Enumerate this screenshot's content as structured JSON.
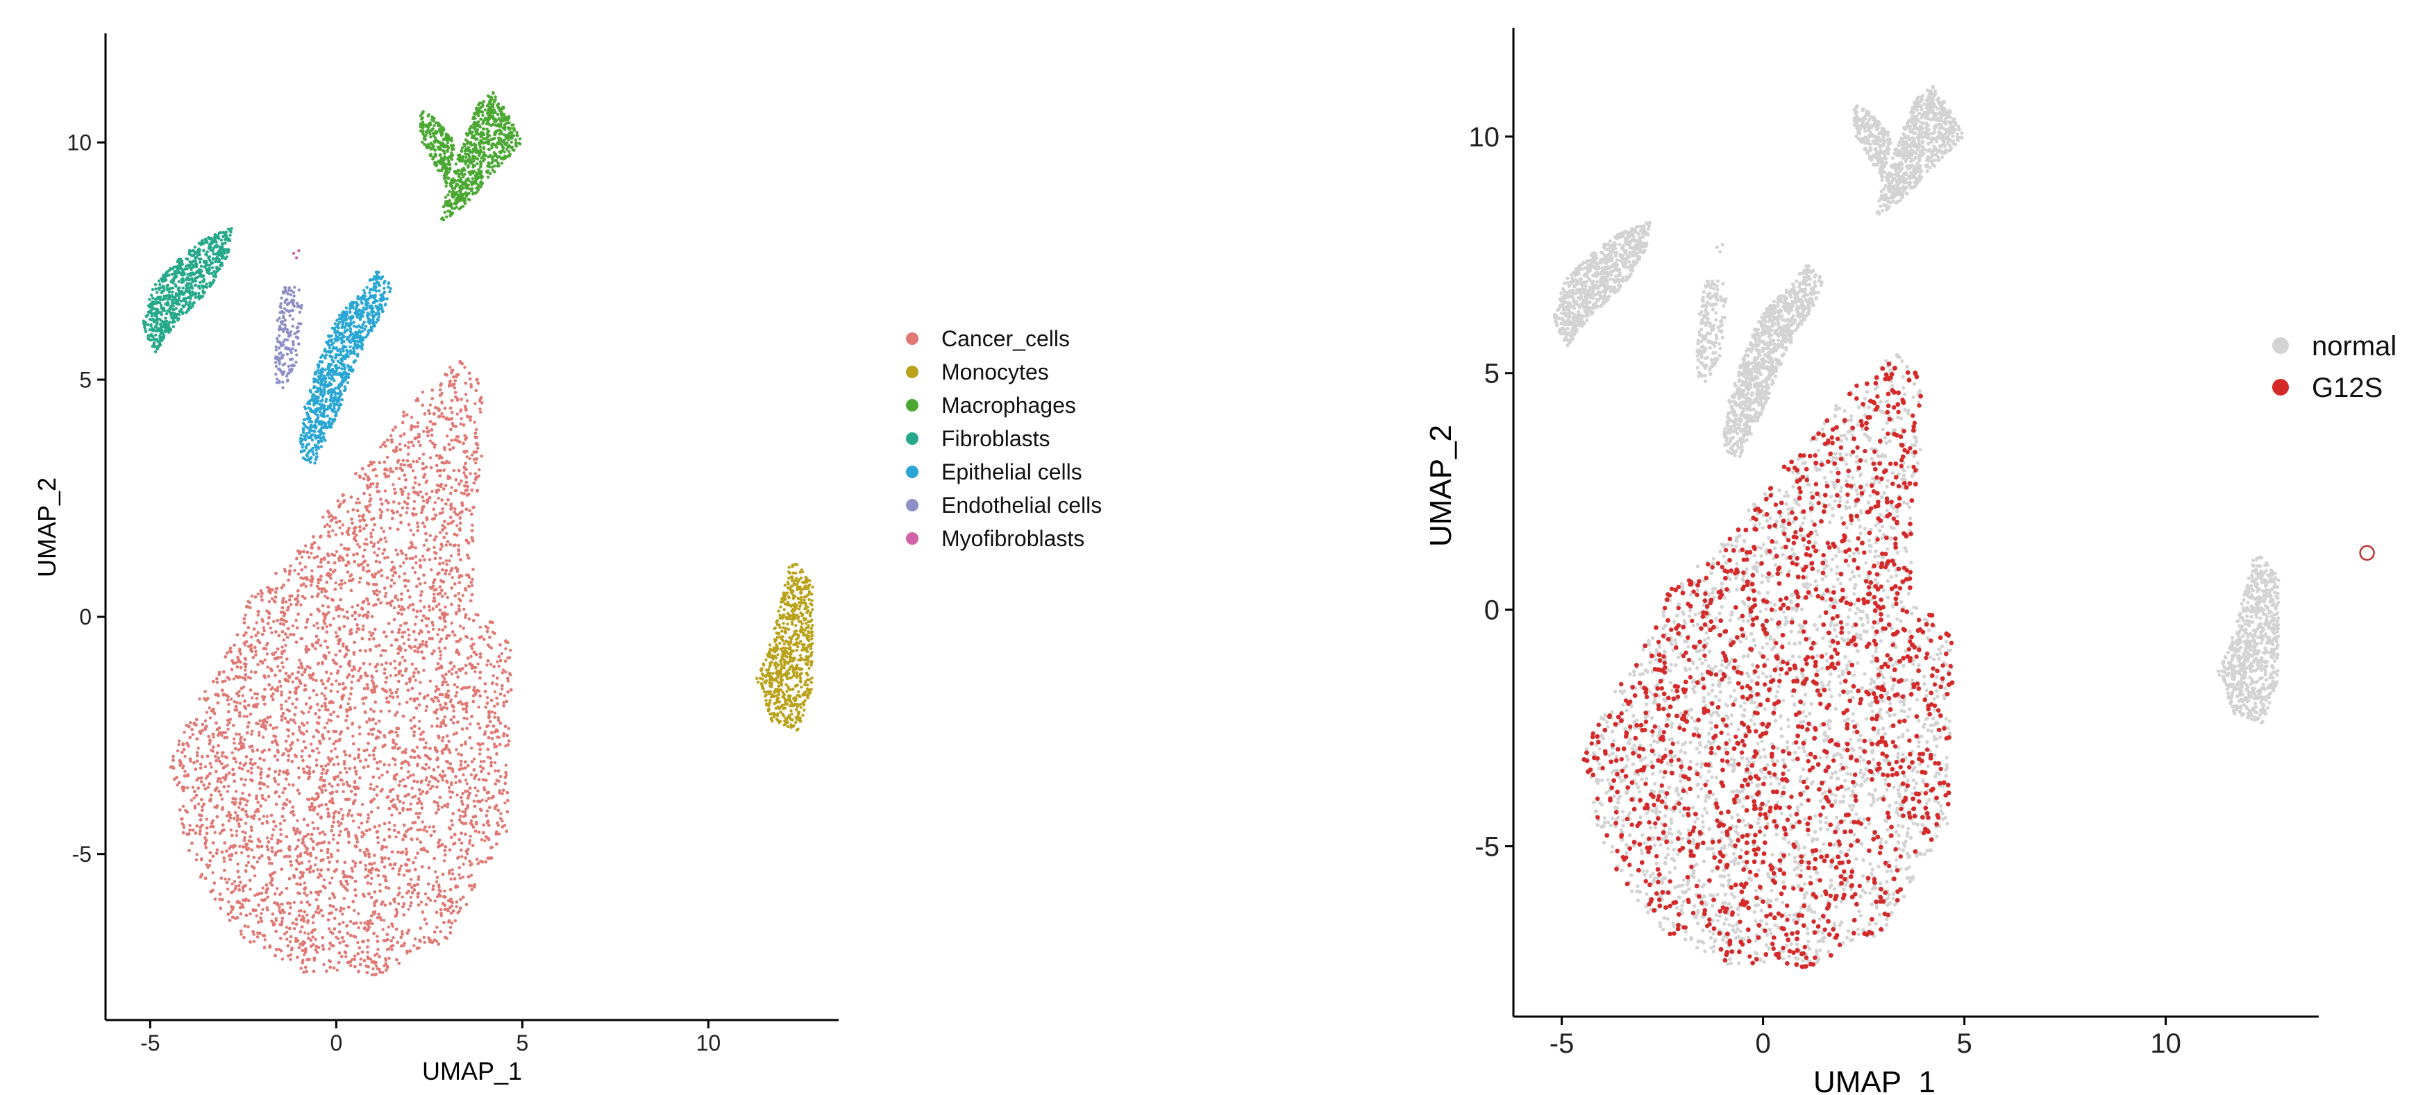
{
  "chart_data": [
    {
      "type": "scatter",
      "xlabel": "UMAP_1",
      "ylabel": "UMAP_2",
      "xlim": [
        -6.2,
        13.5
      ],
      "ylim": [
        -8.5,
        12.3
      ],
      "xticks": [
        -5,
        0,
        5,
        10
      ],
      "yticks": [
        -5,
        0,
        5,
        10
      ],
      "grid": false,
      "legend": "right",
      "series": [
        {
          "name": "Cancer_cells",
          "color": "#e07873"
        },
        {
          "name": "Monocytes",
          "color": "#b9a21a"
        },
        {
          "name": "Macrophages",
          "color": "#4aa832"
        },
        {
          "name": "Fibroblasts",
          "color": "#26a98a"
        },
        {
          "name": "Epithelial cells",
          "color": "#29a6d3"
        },
        {
          "name": "Endothelial cells",
          "color": "#8f8fc7"
        },
        {
          "name": "Myofibroblasts",
          "color": "#cf62a6"
        }
      ],
      "clusters": [
        {
          "series": "Cancer_cells",
          "polygon": [
            [
              -4.5,
              -3
            ],
            [
              -4,
              -5.2
            ],
            [
              -2.5,
              -6.8
            ],
            [
              -1,
              -7.5
            ],
            [
              1,
              -7.6
            ],
            [
              3,
              -6.8
            ],
            [
              4.6,
              -4.5
            ],
            [
              4.7,
              -1.5
            ],
            [
              4.7,
              -0.5
            ],
            [
              3.7,
              0.3
            ],
            [
              3.7,
              2
            ],
            [
              4,
              4
            ],
            [
              3.8,
              5.3
            ],
            [
              3.2,
              5.4
            ],
            [
              2,
              4.5
            ],
            [
              0.3,
              2.8
            ],
            [
              -1.2,
              1.2
            ],
            [
              -2.4,
              0.4
            ],
            [
              -2.6,
              -0.3
            ],
            [
              -3.6,
              -1.6
            ]
          ],
          "density": 1.0
        },
        {
          "series": "Monocytes",
          "polygon": [
            [
              11.3,
              -1.3
            ],
            [
              11.7,
              -2.2
            ],
            [
              12.4,
              -2.4
            ],
            [
              12.8,
              -1.5
            ],
            [
              12.8,
              0.8
            ],
            [
              12.2,
              1.3
            ],
            [
              11.9,
              0.2
            ],
            [
              11.7,
              -0.5
            ]
          ],
          "density": 0.9
        },
        {
          "series": "Macrophages",
          "polygon": [
            [
              2.8,
              8.3
            ],
            [
              3.5,
              8.7
            ],
            [
              4.3,
              9.4
            ],
            [
              5,
              10
            ],
            [
              4.7,
              10.5
            ],
            [
              4.2,
              11.1
            ],
            [
              3.8,
              10.8
            ],
            [
              3.3,
              9.8
            ],
            [
              3,
              9
            ],
            [
              2.3,
              10
            ],
            [
              2.2,
              10.7
            ],
            [
              2.7,
              10.5
            ],
            [
              3.2,
              10
            ]
          ],
          "density": 0.8
        },
        {
          "series": "Fibroblasts",
          "polygon": [
            [
              -5.2,
              6.2
            ],
            [
              -4.9,
              5.5
            ],
            [
              -4.3,
              6.2
            ],
            [
              -3.5,
              6.8
            ],
            [
              -2.9,
              7.6
            ],
            [
              -2.8,
              8.2
            ],
            [
              -3.5,
              8
            ],
            [
              -4.3,
              7.5
            ],
            [
              -4.9,
              7
            ]
          ],
          "density": 0.8
        },
        {
          "series": "Epithelial cells",
          "polygon": [
            [
              -1,
              3.4
            ],
            [
              -0.6,
              3.2
            ],
            [
              0,
              4.2
            ],
            [
              0.6,
              5.5
            ],
            [
              1.3,
              6.5
            ],
            [
              1.5,
              7
            ],
            [
              1.1,
              7.3
            ],
            [
              0.6,
              6.8
            ],
            [
              -0.1,
              6.2
            ],
            [
              -0.5,
              5.3
            ],
            [
              -0.9,
              4.3
            ]
          ],
          "density": 0.6
        },
        {
          "series": "Endothelial cells",
          "polygon": [
            [
              -1.7,
              5
            ],
            [
              -1.4,
              4.8
            ],
            [
              -1,
              5.5
            ],
            [
              -0.9,
              6.5
            ],
            [
              -1,
              7
            ],
            [
              -1.4,
              7
            ],
            [
              -1.6,
              6.3
            ]
          ],
          "density": 0.7
        },
        {
          "series": "Myofibroblasts",
          "polygon": [
            [
              -1.15,
              7.5
            ],
            [
              -1,
              7.5
            ],
            [
              -1,
              7.8
            ],
            [
              -1.15,
              7.8
            ]
          ],
          "density": 0.5
        }
      ]
    },
    {
      "type": "scatter",
      "xlabel": "UMAP_1",
      "ylabel": "UMAP_2",
      "xlim": [
        -6.2,
        13.8
      ],
      "ylim": [
        -8.6,
        12.3
      ],
      "xticks": [
        -5,
        0,
        5,
        10
      ],
      "yticks": [
        -5,
        0,
        5,
        10
      ],
      "grid": false,
      "legend": "right",
      "series": [
        {
          "name": "normal",
          "color": "#d3d3d3"
        },
        {
          "name": "G12S",
          "color": "#d42a2a"
        }
      ],
      "outlier": {
        "x": 15,
        "y": 1.2
      }
    }
  ]
}
